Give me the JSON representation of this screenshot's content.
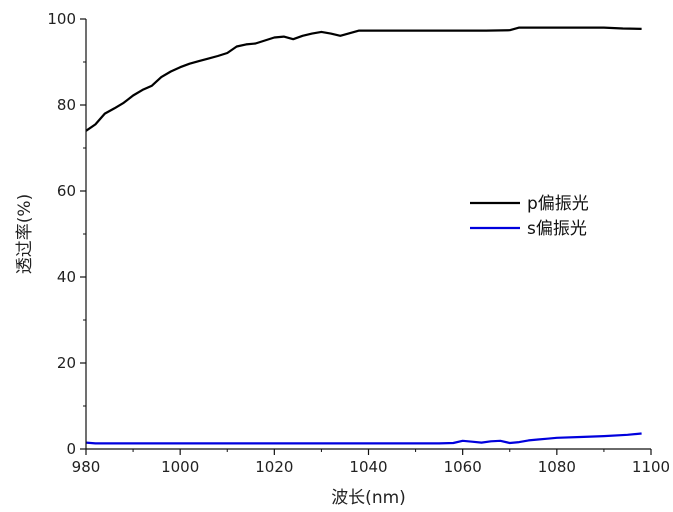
{
  "chart_data": {
    "type": "line",
    "title": "",
    "xlabel": "波长(nm)",
    "ylabel": "透过率(%)",
    "xlim": [
      980,
      1100
    ],
    "ylim": [
      0,
      100
    ],
    "xticks": [
      "980",
      "1000",
      "1020",
      "1040",
      "1060",
      "1080",
      "1100"
    ],
    "yticks": [
      "0",
      "20",
      "40",
      "60",
      "80",
      "100"
    ],
    "grid": false,
    "legend_position": "right-middle",
    "series": [
      {
        "name": "p偏振光",
        "color": "#000000",
        "x": [
          980,
          982,
          984,
          986,
          988,
          990,
          992,
          994,
          996,
          998,
          1000,
          1002,
          1004,
          1006,
          1008,
          1010,
          1012,
          1014,
          1016,
          1018,
          1020,
          1022,
          1024,
          1026,
          1028,
          1030,
          1032,
          1034,
          1036,
          1038,
          1040,
          1045,
          1050,
          1055,
          1060,
          1065,
          1070,
          1072,
          1080,
          1090,
          1094,
          1098
        ],
        "y": [
          74,
          75.5,
          78,
          79.2,
          80.5,
          82.2,
          83.5,
          84.5,
          86.5,
          87.8,
          88.8,
          89.6,
          90.2,
          90.8,
          91.4,
          92.1,
          93.6,
          94.1,
          94.3,
          95,
          95.7,
          95.9,
          95.3,
          96.1,
          96.6,
          97,
          96.6,
          96.1,
          96.7,
          97.3,
          97.3,
          97.3,
          97.3,
          97.3,
          97.3,
          97.3,
          97.4,
          98,
          98,
          98,
          97.8,
          97.7
        ]
      },
      {
        "name": "s偏振光",
        "color": "#0000dd",
        "x": [
          980,
          982,
          990,
          1000,
          1010,
          1020,
          1030,
          1040,
          1050,
          1055,
          1058,
          1060,
          1062,
          1064,
          1066,
          1068,
          1070,
          1072,
          1074,
          1076,
          1078,
          1080,
          1085,
          1090,
          1095,
          1098
        ],
        "y": [
          1.5,
          1.3,
          1.3,
          1.3,
          1.3,
          1.3,
          1.3,
          1.3,
          1.3,
          1.3,
          1.4,
          1.9,
          1.7,
          1.5,
          1.8,
          1.9,
          1.4,
          1.6,
          2.0,
          2.2,
          2.4,
          2.6,
          2.8,
          3.0,
          3.3,
          3.6
        ]
      }
    ]
  }
}
